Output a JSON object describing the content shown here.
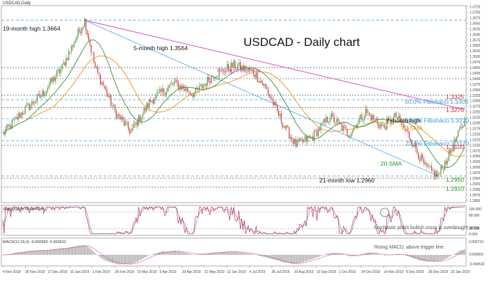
{
  "chart_data": {
    "type": "candlestick",
    "header_label": "USDCAD,Daily",
    "title": "USDCAD - Daily chart",
    "colors": {
      "up": "#2e8b2e",
      "down": "#cc2222",
      "sma20": "#3a8a3a",
      "sma40": "#e89020",
      "trend": "#e060c0",
      "fib": "#3399dd",
      "level_red": "#dd2222",
      "level_green": "#229922",
      "stoch_k": "#cc3333",
      "stoch_d": "#4444cc",
      "macd_hist": "#999999",
      "macd_signal": "#dd3333"
    },
    "price_axis": {
      "ylim": [
        1.284,
        1.373
      ],
      "ticks": [
        "1.3725",
        "1.3700",
        "1.3675",
        "1.3650",
        "1.3625",
        "1.3600",
        "1.3575",
        "1.3550",
        "1.3525",
        "1.3500",
        "1.3475",
        "1.3450",
        "1.3425",
        "1.3400",
        "1.3375",
        "1.3350",
        "1.3325",
        "1.3300",
        "1.3275",
        "1.3250",
        "1.3225",
        "1.3200",
        "1.3175",
        "1.3150",
        "1.3125",
        "1.3100",
        "1.3075",
        "1.3050",
        "1.3025",
        "1.3000",
        "1.2975",
        "1.2950",
        "1.2925",
        "1.2900",
        "1.2875",
        "1.2850"
      ]
    },
    "x_axis": {
      "labels": [
        "4 Nov 2018",
        "26 Nov 2018",
        "17 Dec 2018",
        "10 Jan 2019",
        "1 Feb 2019",
        "25 Feb 2019",
        "15 Mar 2019",
        "5 Apr 2019",
        "29 Apr 2019",
        "21 May 2019",
        "12 Jun 2019",
        "4 Jul 2019",
        "26 Jul 2019",
        "19 Aug 2019",
        "10 Sep 2019",
        "1 Oct 2019",
        "24 Oct 2019",
        "14 Nov 2019",
        "6 Dec 2019",
        "30 Dec 2019",
        "23 Jan 2020"
      ],
      "n_bars": 310
    },
    "anchors": [
      {
        "bar": 0,
        "price": 1.315
      },
      {
        "bar": 15,
        "price": 1.325
      },
      {
        "bar": 30,
        "price": 1.333
      },
      {
        "bar": 45,
        "price": 1.345
      },
      {
        "bar": 55,
        "price": 1.358
      },
      {
        "bar": 62,
        "price": 1.3664
      },
      {
        "bar": 70,
        "price": 1.345
      },
      {
        "bar": 85,
        "price": 1.325
      },
      {
        "bar": 97,
        "price": 1.316
      },
      {
        "bar": 112,
        "price": 1.33
      },
      {
        "bar": 130,
        "price": 1.338
      },
      {
        "bar": 145,
        "price": 1.333
      },
      {
        "bar": 160,
        "price": 1.342
      },
      {
        "bar": 175,
        "price": 1.346
      },
      {
        "bar": 190,
        "price": 1.343
      },
      {
        "bar": 200,
        "price": 1.335
      },
      {
        "bar": 212,
        "price": 1.32
      },
      {
        "bar": 222,
        "price": 1.31
      },
      {
        "bar": 235,
        "price": 1.314
      },
      {
        "bar": 248,
        "price": 1.323
      },
      {
        "bar": 262,
        "price": 1.315
      },
      {
        "bar": 275,
        "price": 1.325
      },
      {
        "bar": 288,
        "price": 1.318
      },
      {
        "bar": 298,
        "price": 1.323
      },
      {
        "bar": 309,
        "price": 1.313
      },
      {
        "bar": 320,
        "price": 1.3
      },
      {
        "bar": 330,
        "price": 1.296
      },
      {
        "bar": 340,
        "price": 1.308
      },
      {
        "bar": 350,
        "price": 1.321
      }
    ],
    "annotations": {
      "high19": "19-month high 1.3664",
      "high5": "5-month high 1.3564",
      "trend_label": "Falling trend line",
      "fib50": "50.0% Fibonacci 1.3305",
      "fib382": "38.2% Fibonacci 1.3220",
      "fib236": "23.6% Fibonacci 1.3120",
      "l1": "1.3325",
      "l2": "1.3270",
      "l3": "1.3100",
      "l4": "1.2950",
      "l5": "1.2910",
      "m7": "7-month high",
      "sma40": "40-SMA",
      "sma20": "20-SMA",
      "low21": "21-month low 1.2960"
    },
    "levels": [
      {
        "price": 1.3664,
        "kind": "fib"
      },
      {
        "price": 1.345,
        "kind": "gray"
      },
      {
        "price": 1.34,
        "kind": "gray"
      },
      {
        "price": 1.3325,
        "kind": "gray"
      },
      {
        "price": 1.3305,
        "kind": "fib"
      },
      {
        "price": 1.327,
        "kind": "gray"
      },
      {
        "price": 1.322,
        "kind": "fib"
      },
      {
        "price": 1.312,
        "kind": "fib"
      },
      {
        "price": 1.31,
        "kind": "gray"
      },
      {
        "price": 1.296,
        "kind": "fib"
      },
      {
        "price": 1.295,
        "kind": "gray"
      },
      {
        "price": 1.291,
        "kind": "gray"
      }
    ],
    "stochastic": {
      "header": "Stoch(5,3,3) 98.56 94.75",
      "scale": [
        "100.000",
        "80.000",
        "20.000",
        "0.000"
      ],
      "note": "Stochastic posts bullish cross in overbought area"
    },
    "macd": {
      "header": "MACD(12,26,9) -0.000583 -0.000622",
      "scale": [
        "0.005710",
        "0.000000",
        "-0.004532"
      ],
      "note": "Rising MACD, above trigger line"
    }
  }
}
